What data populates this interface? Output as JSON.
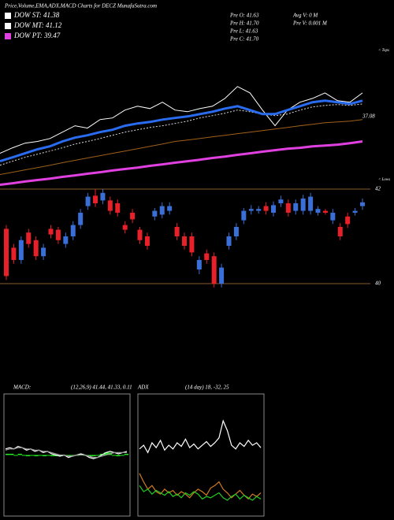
{
  "header": {
    "title": "Price,Volume,EMA,ADX,MACD Charts for DECZ MunafaSutra.com"
  },
  "legend": [
    {
      "label": "DOW ST: 41.38",
      "color": "#ffffff"
    },
    {
      "label": "DOW MT: 41.12",
      "color": "#ffffff"
    },
    {
      "label": "DOW PT: 39.47",
      "color": "#e040e0"
    }
  ],
  "info": [
    "Pre  O: 41.63",
    "Pre  H: 41.70",
    "Pre  L: 41.63",
    "Pre  C: 41.70",
    "Avg V: 0  M",
    "Pre  V: 0.001 M"
  ],
  "chart_data": [
    {
      "type": "line",
      "annotations": [
        "< Tops",
        "< Lows",
        "37.08"
      ],
      "categories": [
        null,
        null,
        null,
        null,
        null,
        null,
        null,
        null,
        null,
        null,
        null,
        null,
        null,
        null,
        null,
        null,
        null,
        null,
        null,
        null,
        null,
        null,
        null,
        null,
        null,
        null,
        null,
        null,
        null,
        null
      ],
      "ylim": [
        37.4,
        43.9
      ],
      "series": [
        {
          "color": "#ffffff",
          "values": [
            38.9,
            39.16,
            39.38,
            39.46,
            39.6,
            39.9,
            40.2,
            40.09,
            40.49,
            40.57,
            40.94,
            41.12,
            41.01,
            41.31,
            40.94,
            40.86,
            41.01,
            41.12,
            41.49,
            42.05,
            41.75,
            40.94,
            40.2,
            40.94,
            41.31,
            41.49,
            41.75,
            41.38,
            41.31,
            41.75
          ]
        },
        {
          "color": "#dddddd",
          "values": [
            38.34,
            38.53,
            38.71,
            38.86,
            39.01,
            39.16,
            39.34,
            39.46,
            39.6,
            39.75,
            39.9,
            40.01,
            40.12,
            40.2,
            40.31,
            40.42,
            40.57,
            40.68,
            40.79,
            40.94,
            40.86,
            40.75,
            40.68,
            40.75,
            40.94,
            41.09,
            41.16,
            41.2,
            41.16,
            41.23
          ]
        },
        {
          "color": "#2a6cf0",
          "values": [
            38.53,
            38.71,
            38.9,
            39.09,
            39.23,
            39.46,
            39.64,
            39.75,
            39.9,
            40.01,
            40.2,
            40.31,
            40.38,
            40.49,
            40.57,
            40.64,
            40.75,
            40.86,
            41.01,
            41.12,
            40.94,
            40.75,
            40.75,
            40.94,
            41.12,
            41.31,
            41.38,
            41.31,
            41.23,
            41.38
          ]
        },
        {
          "color": "#a0601a",
          "values": [
            37.9,
            38.01,
            38.12,
            38.23,
            38.34,
            38.46,
            38.57,
            38.68,
            38.79,
            38.9,
            39.01,
            39.12,
            39.23,
            39.34,
            39.46,
            39.53,
            39.6,
            39.68,
            39.75,
            39.83,
            39.9,
            39.97,
            40.05,
            40.12,
            40.2,
            40.27,
            40.34,
            40.38,
            40.42,
            40.49
          ]
        },
        {
          "color": "#e040e0",
          "values": [
            37.42,
            37.49,
            37.57,
            37.64,
            37.71,
            37.79,
            37.86,
            37.94,
            38.01,
            38.09,
            38.16,
            38.23,
            38.31,
            38.38,
            38.46,
            38.53,
            38.6,
            38.68,
            38.75,
            38.83,
            38.9,
            38.98,
            39.05,
            39.12,
            39.16,
            39.23,
            39.27,
            39.31,
            39.38,
            39.46
          ]
        }
      ]
    },
    {
      "type": "candlestick",
      "up_color": "#3a6fd8",
      "down_color": "#e8202a",
      "grid_color": "#8b5a2b",
      "categories": [
        null,
        null,
        null,
        null,
        null,
        null,
        null,
        null,
        null,
        null,
        null,
        null,
        null,
        null,
        null,
        null,
        null,
        null,
        null,
        null,
        null,
        null,
        null,
        null,
        null,
        null,
        null,
        null,
        null,
        null,
        null,
        null,
        null,
        null,
        null,
        null,
        null,
        null,
        null,
        null,
        null,
        null,
        null,
        null,
        null,
        null,
        null,
        null,
        null
      ],
      "ylim": [
        40,
        42
      ],
      "yticks": [
        40,
        42
      ],
      "open": [
        41.16,
        40.76,
        40.5,
        41.08,
        40.92,
        40.58,
        41.16,
        41.14,
        40.84,
        41.0,
        41.24,
        41.64,
        41.86,
        41.76,
        41.76,
        41.7,
        41.24,
        41.5,
        41.14,
        41.0,
        41.42,
        41.46,
        41.54,
        41.2,
        41.0,
        41.0,
        40.3,
        40.64,
        40.58,
        40.0,
        40.8,
        41.0,
        41.34,
        41.54,
        41.54,
        41.64,
        41.5,
        41.7,
        41.7,
        41.54,
        41.54,
        41.54,
        41.5,
        41.54,
        41.34,
        41.2,
        41.42,
        41.5,
        41.64
      ],
      "high": [
        41.24,
        40.84,
        41.0,
        41.16,
        41.0,
        40.84,
        41.24,
        41.2,
        41.08,
        41.32,
        41.58,
        41.92,
        42.0,
        42.0,
        41.84,
        41.78,
        41.32,
        41.58,
        41.2,
        41.08,
        41.6,
        41.72,
        41.72,
        41.28,
        41.08,
        41.08,
        40.58,
        40.72,
        40.66,
        40.42,
        41.08,
        41.28,
        41.6,
        41.66,
        41.64,
        41.72,
        41.74,
        41.86,
        41.78,
        41.78,
        41.88,
        41.92,
        41.64,
        41.58,
        41.58,
        41.28,
        41.5,
        41.6,
        41.8
      ],
      "low": [
        40.08,
        40.42,
        40.42,
        40.76,
        40.5,
        40.5,
        40.96,
        40.84,
        40.76,
        40.92,
        41.16,
        41.56,
        41.62,
        41.68,
        41.46,
        41.42,
        41.06,
        41.28,
        40.84,
        40.72,
        41.34,
        41.38,
        41.46,
        40.92,
        40.72,
        40.58,
        40.2,
        40.42,
        39.92,
        39.92,
        40.72,
        40.92,
        41.26,
        41.46,
        41.48,
        41.46,
        41.42,
        41.62,
        41.42,
        41.46,
        41.46,
        41.46,
        41.44,
        41.46,
        41.26,
        40.92,
        41.18,
        41.44,
        41.56
      ],
      "close": [
        40.16,
        40.5,
        40.92,
        40.84,
        40.58,
        40.76,
        41.04,
        40.92,
        41.0,
        41.24,
        41.5,
        41.84,
        41.7,
        41.92,
        41.54,
        41.5,
        41.14,
        41.36,
        40.92,
        40.8,
        41.54,
        41.64,
        41.64,
        41.0,
        40.8,
        40.66,
        40.5,
        40.5,
        40.0,
        40.34,
        41.0,
        41.2,
        41.54,
        41.58,
        41.58,
        41.54,
        41.66,
        41.78,
        41.5,
        41.7,
        41.8,
        41.84,
        41.58,
        41.5,
        41.5,
        41.0,
        41.26,
        41.54,
        41.72
      ]
    },
    {
      "type": "macd",
      "title": "MACD:",
      "subtitle": "(12,26,9) 41.44, 41.33, 0.11",
      "ylim": [
        -0.5,
        0.5
      ],
      "histogram_color": "#22ee22",
      "histogram": [
        0.01,
        0.01,
        0,
        0.01,
        0,
        -0.01,
        0,
        -0.01,
        0,
        -0.01,
        0,
        -0.01,
        -0.01,
        -0.01,
        0,
        -0.01,
        0,
        0,
        0.01,
        0,
        -0.01,
        -0.01,
        0,
        0.01,
        0.02,
        0.02,
        0,
        -0.01,
        0,
        0.01
      ],
      "series": [
        {
          "color": "#ffffff",
          "values": [
            0.05,
            0.06,
            0.05,
            0.07,
            0.06,
            0.04,
            0.05,
            0.03,
            0.04,
            0.02,
            0.03,
            0.01,
            0.0,
            -0.01,
            0.0,
            -0.02,
            -0.01,
            0.0,
            0.01,
            0.0,
            -0.02,
            -0.03,
            -0.02,
            0.0,
            0.02,
            0.03,
            0.02,
            0.01,
            0.02,
            0.03
          ]
        },
        {
          "color": "#999999",
          "values": [
            0.04,
            0.05,
            0.05,
            0.06,
            0.06,
            0.05,
            0.05,
            0.04,
            0.04,
            0.03,
            0.03,
            0.02,
            0.01,
            0.0,
            0.0,
            -0.01,
            -0.01,
            0.0,
            0.0,
            0.0,
            -0.01,
            -0.02,
            -0.02,
            -0.01,
            0.0,
            0.01,
            0.02,
            0.02,
            0.02,
            0.02
          ]
        }
      ]
    },
    {
      "type": "adx",
      "title": "ADX",
      "subtitle": "(14  day) 18, -32, 25",
      "ylim": [
        0,
        100
      ],
      "series": [
        {
          "color": "#ffffff",
          "values": [
            55,
            58,
            52,
            60,
            56,
            62,
            54,
            58,
            55,
            60,
            57,
            63,
            56,
            59,
            55,
            58,
            61,
            57,
            60,
            64,
            78,
            70,
            58,
            55,
            60,
            57,
            62,
            58,
            60,
            56
          ]
        },
        {
          "color": "#d07a20",
          "values": [
            35,
            28,
            22,
            25,
            20,
            18,
            22,
            19,
            21,
            17,
            20,
            18,
            15,
            19,
            22,
            20,
            17,
            23,
            25,
            28,
            22,
            19,
            15,
            18,
            21,
            17,
            14,
            18,
            16,
            19
          ]
        },
        {
          "color": "#22cc22",
          "values": [
            25,
            20,
            22,
            18,
            21,
            19,
            17,
            20,
            16,
            18,
            15,
            19,
            17,
            20,
            18,
            14,
            16,
            15,
            17,
            19,
            15,
            13,
            16,
            18,
            14,
            17,
            15,
            13,
            16,
            14
          ]
        }
      ]
    }
  ]
}
